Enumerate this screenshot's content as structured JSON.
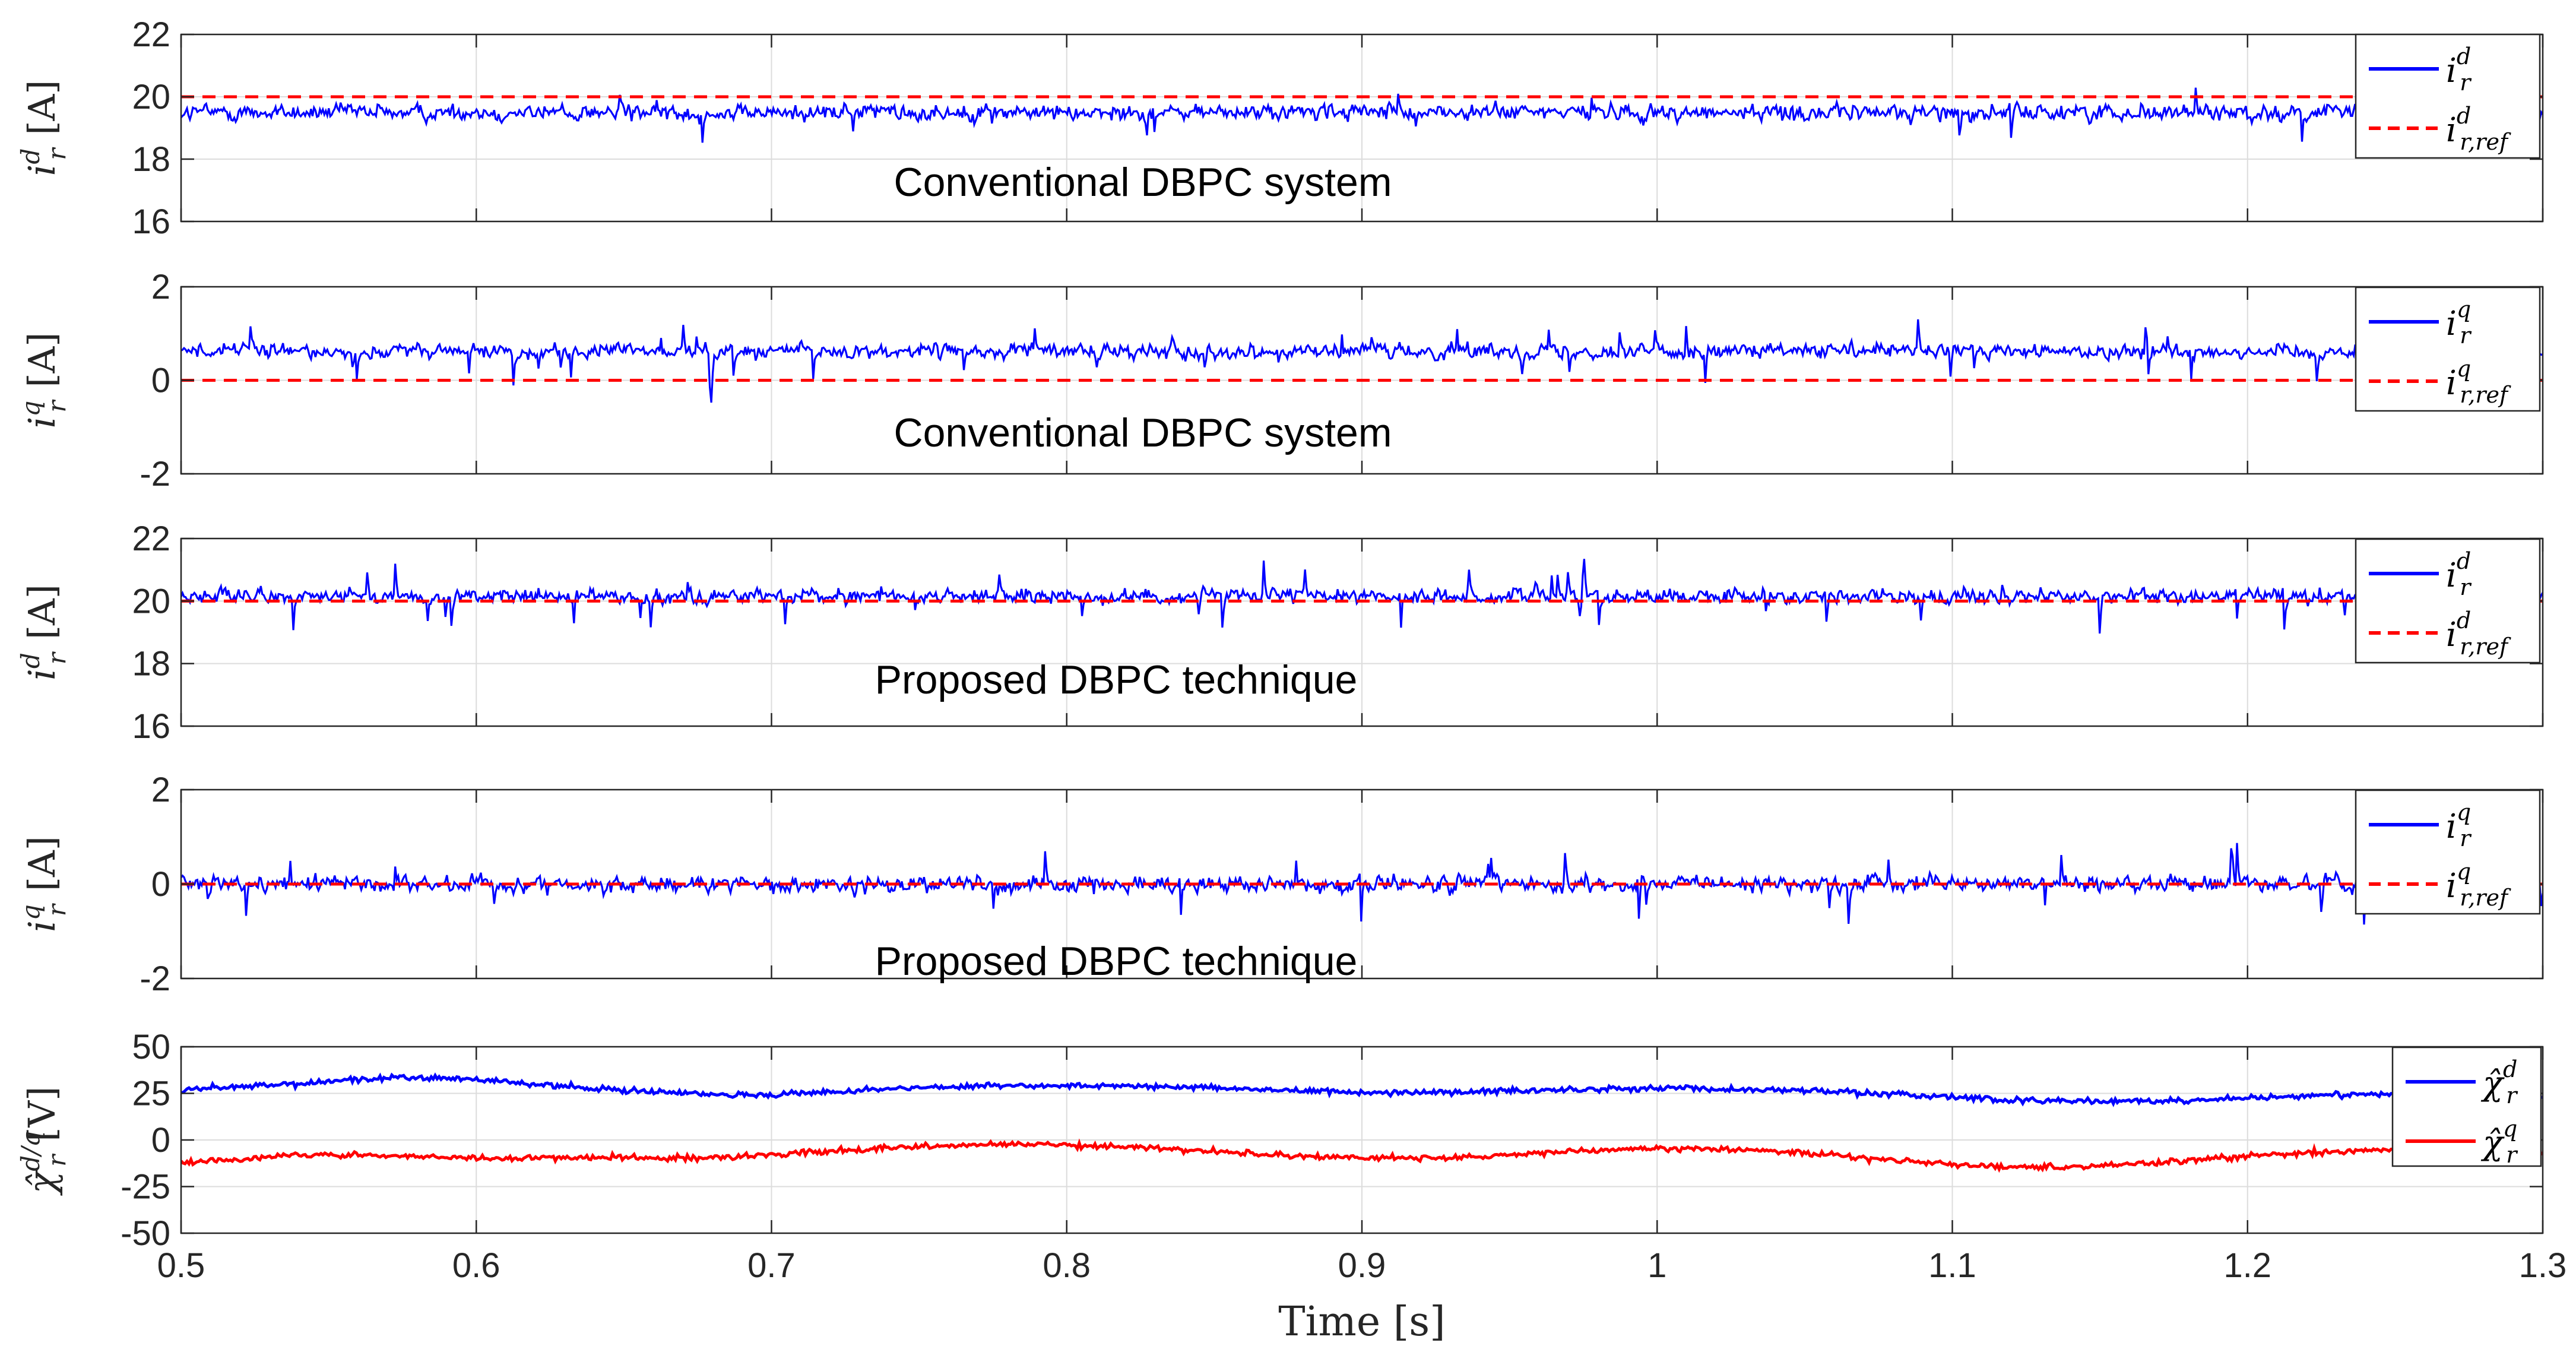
{
  "chart_data": {
    "type": "line",
    "xlabel": "Time [s]",
    "xlim": [
      0.5,
      1.3
    ],
    "xticks": [
      "0.5",
      "0.6",
      "0.7",
      "0.8",
      "0.9",
      "1",
      "1.1",
      "1.2",
      "1.3"
    ],
    "grid": true,
    "panels": [
      {
        "id": "p1",
        "ylabel": {
          "symbol": "i",
          "sup": "d",
          "sub": "r",
          "unit": "[A]"
        },
        "ylim": [
          16,
          22
        ],
        "yticks": [
          "16",
          "18",
          "20",
          "22"
        ],
        "annotation": "Conventional DBPC system",
        "series": [
          {
            "name": "i_r^d",
            "legend": {
              "symbol": "i",
              "sup": "d",
              "sub": "r"
            },
            "color": "#0000ff",
            "style": "solid",
            "mean": 19.5,
            "noise": 0.38,
            "spike": 0.9
          },
          {
            "name": "i_r,ref^d",
            "legend": {
              "symbol": "i",
              "sup": "d",
              "sub": "r,ref"
            },
            "color": "#ff0000",
            "style": "dashed",
            "value": 20
          }
        ]
      },
      {
        "id": "p2",
        "ylabel": {
          "symbol": "i",
          "sup": "q",
          "sub": "r",
          "unit": "[A]"
        },
        "ylim": [
          -2,
          2
        ],
        "yticks": [
          "-2",
          "0",
          "2"
        ],
        "annotation": "Conventional DBPC system",
        "series": [
          {
            "name": "i_r^q",
            "legend": {
              "symbol": "i",
              "sup": "q",
              "sub": "r"
            },
            "color": "#0000ff",
            "style": "solid",
            "mean": 0.62,
            "noise": 0.22,
            "spike": 0.7
          },
          {
            "name": "i_r,ref^q",
            "legend": {
              "symbol": "i",
              "sup": "q",
              "sub": "r,ref"
            },
            "color": "#ff0000",
            "style": "dashed",
            "value": 0
          }
        ]
      },
      {
        "id": "p3",
        "ylabel": {
          "symbol": "i",
          "sup": "d",
          "sub": "r",
          "unit": "[A]"
        },
        "ylim": [
          16,
          22
        ],
        "yticks": [
          "16",
          "18",
          "20",
          "22"
        ],
        "annotation": "Proposed DBPC technique",
        "series": [
          {
            "name": "i_r^d",
            "legend": {
              "symbol": "i",
              "sup": "d",
              "sub": "r"
            },
            "color": "#0000ff",
            "style": "solid",
            "mean": 20.15,
            "noise": 0.32,
            "spike": 1.2
          },
          {
            "name": "i_r,ref^d",
            "legend": {
              "symbol": "i",
              "sup": "d",
              "sub": "r,ref"
            },
            "color": "#ff0000",
            "style": "dashed",
            "value": 20
          }
        ]
      },
      {
        "id": "p4",
        "ylabel": {
          "symbol": "i",
          "sup": "q",
          "sub": "r",
          "unit": "[A]"
        },
        "ylim": [
          -2,
          2
        ],
        "yticks": [
          "-2",
          "0",
          "2"
        ],
        "annotation": "Proposed DBPC technique",
        "series": [
          {
            "name": "i_r^q",
            "legend": {
              "symbol": "i",
              "sup": "q",
              "sub": "r"
            },
            "color": "#0000ff",
            "style": "solid",
            "mean": 0.0,
            "noise": 0.25,
            "spike": 0.9
          },
          {
            "name": "i_r,ref^q",
            "legend": {
              "symbol": "i",
              "sup": "q",
              "sub": "r,ref"
            },
            "color": "#ff0000",
            "style": "dashed",
            "value": 0
          }
        ]
      },
      {
        "id": "p5",
        "ylabel": {
          "symbol": "χ̂",
          "sup": "d/q",
          "sub": "r",
          "unit": "[V]"
        },
        "ylim": [
          -50,
          50
        ],
        "yticks": [
          "-50",
          "-25",
          "0",
          "25",
          "50"
        ],
        "annotation": "",
        "series": [
          {
            "name": "chi_r^d",
            "legend": {
              "symbol": "χ̂",
              "sup": "d",
              "sub": "r"
            },
            "color": "#0000ff",
            "style": "solid",
            "mean": 27,
            "noise": 1.5,
            "wander": 4
          },
          {
            "name": "chi_r^q",
            "legend": {
              "symbol": "χ̂",
              "sup": "q",
              "sub": "r"
            },
            "color": "#ff0000",
            "style": "solid",
            "mean": -12,
            "noise": 1.5,
            "wander": 6
          }
        ]
      }
    ]
  }
}
